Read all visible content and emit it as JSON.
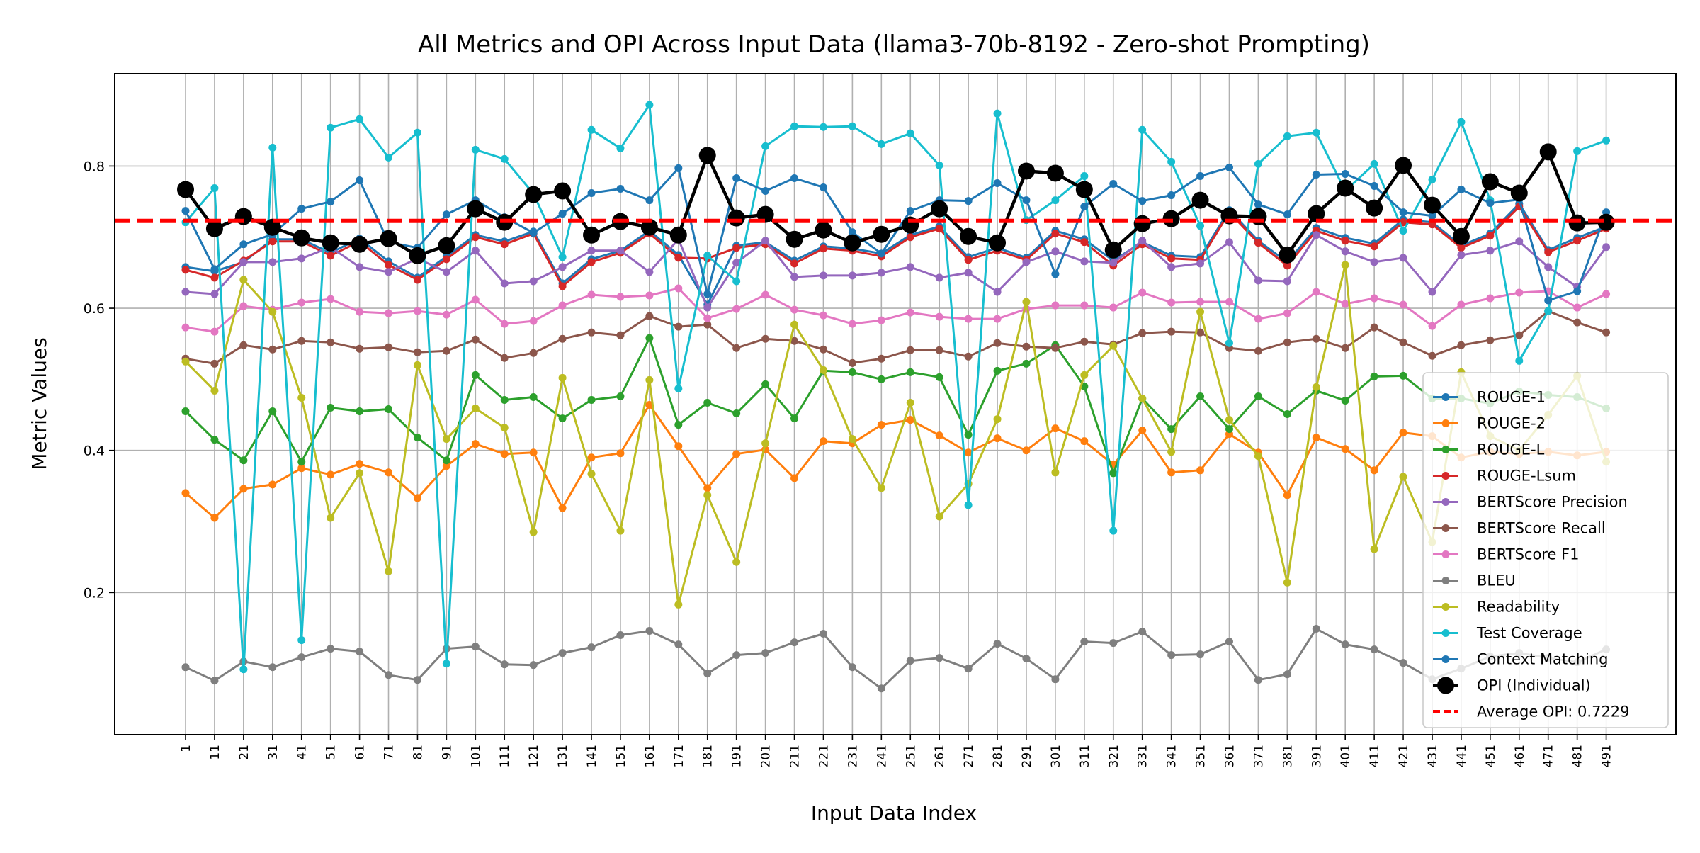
{
  "chart_data": {
    "type": "line",
    "title": "All Metrics and OPI Across Input Data (llama3-70b-8192 - Zero-shot Prompting)",
    "xlabel": "Input Data Index",
    "ylabel": "Metric Values",
    "ylim": [
      0.0,
      0.93
    ],
    "yticks": [
      0.2,
      0.4,
      0.6,
      0.8
    ],
    "ytick_labels": [
      "0.2",
      "0.4",
      "0.6",
      "0.8"
    ],
    "grid": true,
    "legend_position": "lower right",
    "categories": [
      "1",
      "11",
      "21",
      "31",
      "41",
      "51",
      "61",
      "71",
      "81",
      "91",
      "101",
      "111",
      "121",
      "131",
      "141",
      "151",
      "161",
      "171",
      "181",
      "191",
      "201",
      "211",
      "221",
      "231",
      "241",
      "251",
      "261",
      "271",
      "281",
      "291",
      "301",
      "311",
      "321",
      "331",
      "341",
      "351",
      "361",
      "371",
      "381",
      "391",
      "401",
      "411",
      "421",
      "431",
      "441",
      "451",
      "461",
      "471",
      "481",
      "491"
    ],
    "series": [
      {
        "name": "ROUGE-1",
        "color": "#1f77b4",
        "marker": "dot",
        "values": [
          0.658,
          0.652,
          0.665,
          0.697,
          0.697,
          0.678,
          0.698,
          0.666,
          0.643,
          0.673,
          0.703,
          0.694,
          0.708,
          0.635,
          0.669,
          0.681,
          0.709,
          0.675,
          0.605,
          0.688,
          0.693,
          0.667,
          0.687,
          0.684,
          0.677,
          0.703,
          0.715,
          0.672,
          0.685,
          0.671,
          0.709,
          0.697,
          0.667,
          0.693,
          0.674,
          0.672,
          0.738,
          0.695,
          0.665,
          0.713,
          0.699,
          0.691,
          0.725,
          0.721,
          0.688,
          0.705,
          0.747,
          0.682,
          0.699,
          0.715
        ]
      },
      {
        "name": "ROUGE-2",
        "color": "#ff7f0e",
        "marker": "dot",
        "values": [
          0.34,
          0.305,
          0.346,
          0.352,
          0.375,
          0.366,
          0.381,
          0.369,
          0.333,
          0.378,
          0.409,
          0.395,
          0.397,
          0.319,
          0.39,
          0.396,
          0.464,
          0.406,
          0.347,
          0.395,
          0.401,
          0.361,
          0.413,
          0.41,
          0.436,
          0.443,
          0.421,
          0.397,
          0.417,
          0.4,
          0.431,
          0.413,
          0.38,
          0.428,
          0.369,
          0.372,
          0.423,
          0.397,
          0.337,
          0.418,
          0.402,
          0.372,
          0.425,
          0.42,
          0.39,
          0.398,
          0.395,
          0.398,
          0.393,
          0.398
        ]
      },
      {
        "name": "ROUGE-L",
        "color": "#2ca02c",
        "marker": "dot",
        "values": [
          0.455,
          0.415,
          0.386,
          0.455,
          0.384,
          0.46,
          0.455,
          0.458,
          0.418,
          0.386,
          0.506,
          0.471,
          0.475,
          0.445,
          0.471,
          0.476,
          0.558,
          0.436,
          0.467,
          0.452,
          0.493,
          0.445,
          0.512,
          0.51,
          0.5,
          0.51,
          0.503,
          0.422,
          0.512,
          0.522,
          0.548,
          0.49,
          0.368,
          0.473,
          0.43,
          0.476,
          0.43,
          0.476,
          0.451,
          0.484,
          0.47,
          0.504,
          0.505,
          0.473,
          0.473,
          0.466,
          0.483,
          0.478,
          0.475,
          0.459
        ]
      },
      {
        "name": "ROUGE-Lsum",
        "color": "#d62728",
        "marker": "dot",
        "values": [
          0.654,
          0.643,
          0.667,
          0.694,
          0.694,
          0.674,
          0.694,
          0.661,
          0.64,
          0.669,
          0.7,
          0.69,
          0.705,
          0.631,
          0.665,
          0.678,
          0.705,
          0.671,
          0.67,
          0.685,
          0.69,
          0.663,
          0.684,
          0.681,
          0.673,
          0.7,
          0.712,
          0.668,
          0.681,
          0.668,
          0.705,
          0.693,
          0.66,
          0.69,
          0.67,
          0.668,
          0.735,
          0.692,
          0.66,
          0.709,
          0.695,
          0.687,
          0.721,
          0.718,
          0.685,
          0.702,
          0.743,
          0.679,
          0.695,
          0.712
        ]
      },
      {
        "name": "BERTScore Precision",
        "color": "#9467bd",
        "marker": "dot",
        "values": [
          0.623,
          0.62,
          0.665,
          0.665,
          0.67,
          0.686,
          0.658,
          0.651,
          0.67,
          0.651,
          0.681,
          0.635,
          0.638,
          0.658,
          0.681,
          0.681,
          0.651,
          0.697,
          0.601,
          0.664,
          0.695,
          0.644,
          0.646,
          0.646,
          0.65,
          0.658,
          0.643,
          0.65,
          0.623,
          0.665,
          0.68,
          0.666,
          0.664,
          0.695,
          0.658,
          0.663,
          0.693,
          0.639,
          0.638,
          0.703,
          0.68,
          0.665,
          0.671,
          0.623,
          0.675,
          0.681,
          0.694,
          0.658,
          0.63,
          0.686
        ]
      },
      {
        "name": "BERTScore Recall",
        "color": "#8c564b",
        "marker": "dot",
        "values": [
          0.529,
          0.522,
          0.548,
          0.542,
          0.554,
          0.552,
          0.543,
          0.545,
          0.538,
          0.54,
          0.556,
          0.53,
          0.537,
          0.557,
          0.566,
          0.562,
          0.589,
          0.574,
          0.577,
          0.544,
          0.557,
          0.554,
          0.542,
          0.523,
          0.529,
          0.541,
          0.541,
          0.532,
          0.551,
          0.546,
          0.544,
          0.553,
          0.549,
          0.565,
          0.567,
          0.566,
          0.544,
          0.54,
          0.552,
          0.557,
          0.544,
          0.573,
          0.552,
          0.533,
          0.548,
          0.555,
          0.562,
          0.596,
          0.58,
          0.566
        ]
      },
      {
        "name": "BERTScore F1",
        "color": "#e377c2",
        "marker": "dot",
        "values": [
          0.573,
          0.567,
          0.603,
          0.598,
          0.608,
          0.613,
          0.595,
          0.593,
          0.596,
          0.591,
          0.612,
          0.578,
          0.582,
          0.604,
          0.619,
          0.616,
          0.618,
          0.628,
          0.586,
          0.599,
          0.619,
          0.598,
          0.59,
          0.578,
          0.583,
          0.594,
          0.588,
          0.585,
          0.585,
          0.599,
          0.604,
          0.604,
          0.601,
          0.622,
          0.608,
          0.609,
          0.609,
          0.585,
          0.593,
          0.623,
          0.606,
          0.614,
          0.605,
          0.575,
          0.605,
          0.614,
          0.622,
          0.624,
          0.601,
          0.62
        ]
      },
      {
        "name": "BLEU",
        "color": "#7f7f7f",
        "marker": "dot",
        "values": [
          0.095,
          0.076,
          0.103,
          0.095,
          0.109,
          0.121,
          0.117,
          0.084,
          0.077,
          0.121,
          0.124,
          0.099,
          0.098,
          0.115,
          0.123,
          0.14,
          0.146,
          0.127,
          0.086,
          0.112,
          0.115,
          0.13,
          0.142,
          0.095,
          0.065,
          0.104,
          0.108,
          0.093,
          0.128,
          0.107,
          0.078,
          0.131,
          0.129,
          0.145,
          0.112,
          0.113,
          0.131,
          0.077,
          0.085,
          0.149,
          0.127,
          0.12,
          0.101,
          0.078,
          0.093,
          0.11,
          0.115,
          0.108,
          0.102,
          0.12
        ]
      },
      {
        "name": "Readability",
        "color": "#bcbd22",
        "marker": "dot",
        "values": [
          0.525,
          0.484,
          0.64,
          0.595,
          0.474,
          0.305,
          0.368,
          0.23,
          0.52,
          0.416,
          0.459,
          0.432,
          0.285,
          0.502,
          0.367,
          0.287,
          0.499,
          0.183,
          0.337,
          0.243,
          0.41,
          0.577,
          0.513,
          0.416,
          0.347,
          0.467,
          0.307,
          0.353,
          0.444,
          0.609,
          0.369,
          0.506,
          0.547,
          0.473,
          0.398,
          0.595,
          0.443,
          0.392,
          0.214,
          0.489,
          0.661,
          0.261,
          0.363,
          0.271,
          0.51,
          0.42,
          0.4,
          0.45,
          0.505,
          0.384
        ]
      },
      {
        "name": "Test Coverage",
        "color": "#17becf",
        "marker": "dot",
        "values": [
          0.721,
          0.769,
          0.092,
          0.826,
          0.133,
          0.854,
          0.866,
          0.812,
          0.847,
          0.1,
          0.823,
          0.81,
          0.761,
          0.672,
          0.851,
          0.825,
          0.886,
          0.487,
          0.674,
          0.638,
          0.828,
          0.856,
          0.855,
          0.856,
          0.831,
          0.846,
          0.801,
          0.323,
          0.874,
          0.724,
          0.752,
          0.786,
          0.287,
          0.851,
          0.806,
          0.716,
          0.551,
          0.803,
          0.842,
          0.847,
          0.765,
          0.803,
          0.709,
          0.781,
          0.862,
          0.752,
          0.526,
          0.596,
          0.821,
          0.836
        ]
      },
      {
        "name": "Context Matching",
        "color": "#1f77b4",
        "marker": "dot",
        "values": [
          0.737,
          0.655,
          0.69,
          0.704,
          0.74,
          0.75,
          0.78,
          0.693,
          0.685,
          0.732,
          0.752,
          0.728,
          0.706,
          0.733,
          0.762,
          0.768,
          0.752,
          0.797,
          0.62,
          0.783,
          0.765,
          0.783,
          0.77,
          0.707,
          0.677,
          0.737,
          0.752,
          0.751,
          0.776,
          0.752,
          0.648,
          0.743,
          0.775,
          0.751,
          0.759,
          0.786,
          0.798,
          0.746,
          0.732,
          0.788,
          0.789,
          0.772,
          0.735,
          0.73,
          0.767,
          0.748,
          0.753,
          0.611,
          0.624,
          0.735
        ]
      },
      {
        "name": "OPI (Individual)",
        "color": "#000000",
        "marker": "big",
        "values": [
          0.767,
          0.712,
          0.729,
          0.714,
          0.699,
          0.692,
          0.69,
          0.698,
          0.674,
          0.688,
          0.74,
          0.721,
          0.76,
          0.765,
          0.703,
          0.722,
          0.714,
          0.703,
          0.815,
          0.727,
          0.732,
          0.697,
          0.71,
          0.692,
          0.704,
          0.717,
          0.74,
          0.701,
          0.692,
          0.793,
          0.79,
          0.767,
          0.682,
          0.719,
          0.726,
          0.752,
          0.73,
          0.729,
          0.675,
          0.733,
          0.769,
          0.741,
          0.801,
          0.745,
          0.701,
          0.778,
          0.762,
          0.82,
          0.72,
          0.721
        ]
      }
    ],
    "average_line": {
      "name": "Average OPI: 0.7229",
      "value": 0.7229,
      "color": "#ff0000"
    }
  }
}
